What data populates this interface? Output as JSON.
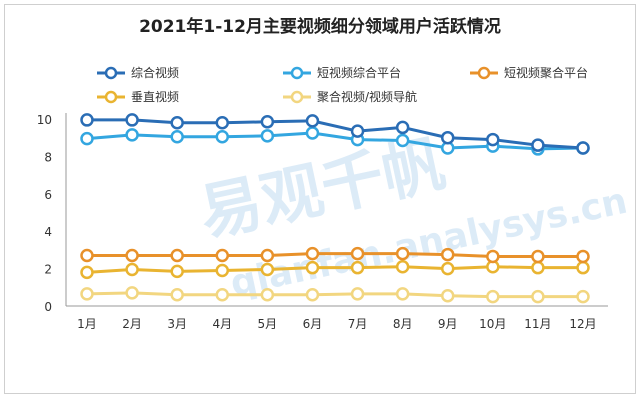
{
  "chart_data": {
    "type": "line",
    "title": "2021年1-12月主要视频细分领域用户活跃情况",
    "categories": [
      "1月",
      "2月",
      "3月",
      "4月",
      "5月",
      "6月",
      "7月",
      "8月",
      "9月",
      "10月",
      "11月",
      "12月"
    ],
    "ylim": [
      0,
      10
    ],
    "yticks": [
      0,
      2,
      4,
      6,
      8,
      10
    ],
    "grid": false,
    "legend": "top",
    "watermark": "易观千帆 qianfan.analysys.cn",
    "series": [
      {
        "name": "综合视频",
        "color": "#2a6db5",
        "values": [
          9.95,
          9.95,
          9.8,
          9.8,
          9.85,
          9.9,
          9.35,
          9.55,
          9.0,
          8.9,
          8.6,
          8.45
        ]
      },
      {
        "name": "短视频综合平台",
        "color": "#33a6e0",
        "values": [
          8.95,
          9.15,
          9.05,
          9.05,
          9.1,
          9.25,
          8.9,
          8.85,
          8.45,
          8.55,
          8.4,
          8.45
        ]
      },
      {
        "name": "短视频聚合平台",
        "color": "#e8912a",
        "values": [
          2.7,
          2.7,
          2.7,
          2.7,
          2.7,
          2.8,
          2.8,
          2.8,
          2.75,
          2.65,
          2.65,
          2.65
        ]
      },
      {
        "name": "垂直视频",
        "color": "#e9b431",
        "values": [
          1.8,
          1.95,
          1.85,
          1.9,
          1.95,
          2.05,
          2.05,
          2.1,
          2.0,
          2.1,
          2.05,
          2.05
        ]
      },
      {
        "name": "聚合视频/视频导航",
        "color": "#f2d680",
        "values": [
          0.65,
          0.7,
          0.6,
          0.6,
          0.6,
          0.6,
          0.65,
          0.65,
          0.55,
          0.5,
          0.5,
          0.5
        ]
      }
    ]
  }
}
